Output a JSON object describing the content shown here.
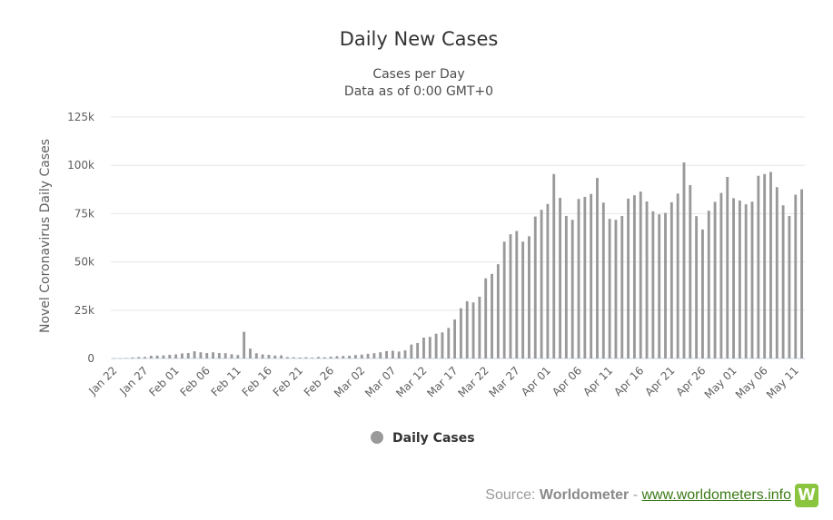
{
  "chart_data": {
    "type": "bar",
    "title": "Daily New Cases",
    "subtitle_lines": [
      "Cases per Day",
      "Data as of 0:00 GMT+0"
    ],
    "ylabel": "Novel Coronavirus Daily Cases",
    "xlabel": "",
    "ylim": [
      0,
      125000
    ],
    "yticks": [
      0,
      25000,
      50000,
      75000,
      100000,
      125000
    ],
    "ytick_labels": [
      "0",
      "25k",
      "50k",
      "75k",
      "100k",
      "125k"
    ],
    "grid": true,
    "legend_position": "bottom-center",
    "xtick_labels": [
      "Jan 22",
      "Jan 27",
      "Feb 01",
      "Feb 06",
      "Feb 11",
      "Feb 16",
      "Feb 21",
      "Feb 26",
      "Mar 02",
      "Mar 07",
      "Mar 12",
      "Mar 17",
      "Mar 22",
      "Mar 27",
      "Apr 01",
      "Apr 06",
      "Apr 11",
      "Apr 16",
      "Apr 21",
      "Apr 26",
      "May 01",
      "May 06",
      "May 11"
    ],
    "xtick_every": 5,
    "series": [
      {
        "name": "Daily Cases",
        "color": "#999999",
        "values": [
          100,
          100,
          250,
          500,
          700,
          800,
          1400,
          1500,
          1600,
          1900,
          2100,
          2600,
          2800,
          3700,
          3200,
          2800,
          3200,
          2800,
          2700,
          2200,
          1800,
          13800,
          5100,
          2700,
          2100,
          1900,
          1500,
          1600,
          700,
          600,
          500,
          600,
          400,
          800,
          600,
          900,
          1200,
          1300,
          1400,
          1800,
          2000,
          2400,
          2700,
          3200,
          3800,
          4000,
          3600,
          4200,
          7200,
          8000,
          10800,
          11200,
          12800,
          13500,
          15800,
          20200,
          26000,
          29600,
          29000,
          32000,
          41500,
          43800,
          48800,
          60500,
          64300,
          66000,
          60500,
          63300,
          73500,
          77000,
          80000,
          95500,
          83200,
          73800,
          71800,
          82600,
          83700,
          85200,
          93500,
          80700,
          72300,
          71800,
          73800,
          82800,
          84500,
          86400,
          81300,
          76200,
          74600,
          75400,
          80900,
          85400,
          101500,
          89800,
          73700,
          66800,
          76500,
          81100,
          85700,
          94000,
          83000,
          81800,
          79800,
          81200,
          94600,
          95500,
          96600,
          88700,
          79300,
          73800,
          84800,
          87600
        ]
      }
    ]
  },
  "credits": {
    "prefix": "Source: ",
    "source_name": "Worldometer",
    "separator": " - ",
    "url_text": "www.worldometers.info",
    "logo_letter": "W"
  }
}
